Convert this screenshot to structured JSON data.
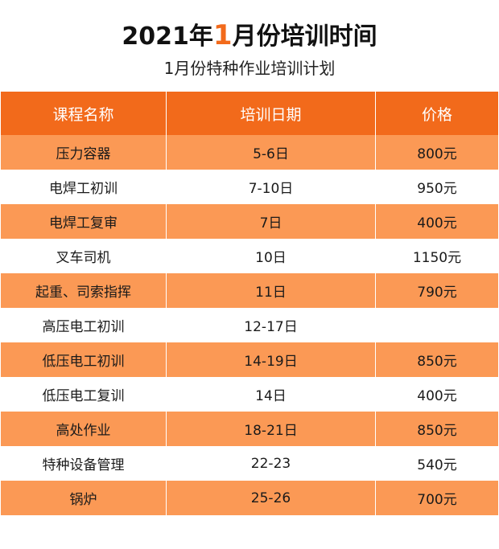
{
  "title": {
    "prefix": "2021年",
    "highlight": "1",
    "suffix": "月份培训时间"
  },
  "subtitle": "1月份特种作业培训计划",
  "colors": {
    "header_bg": "#f26a1b",
    "row_highlight": "#fb9955",
    "accent": "#f26a1b"
  },
  "table": {
    "headers": [
      "课程名称",
      "培训日期",
      "价格"
    ],
    "rows": [
      {
        "course": "压力容器",
        "date": "5-6日",
        "price": "800元"
      },
      {
        "course": "电焊工初训",
        "date": "7-10日",
        "price": "950元"
      },
      {
        "course": "电焊工复审",
        "date": "7日",
        "price": "400元"
      },
      {
        "course": "叉车司机",
        "date": "10日",
        "price": "1150元"
      },
      {
        "course": "起重、司索指挥",
        "date": "11日",
        "price": "790元"
      },
      {
        "course": "高压电工初训",
        "date": "12-17日",
        "price": ""
      },
      {
        "course": "低压电工初训",
        "date": "14-19日",
        "price": "850元"
      },
      {
        "course": "低压电工复训",
        "date": "14日",
        "price": "400元"
      },
      {
        "course": "高处作业",
        "date": "18-21日",
        "price": "850元"
      },
      {
        "course": "特种设备管理",
        "date": "22-23",
        "price": "540元"
      },
      {
        "course": "锅炉",
        "date": "25-26",
        "price": "700元"
      }
    ]
  }
}
